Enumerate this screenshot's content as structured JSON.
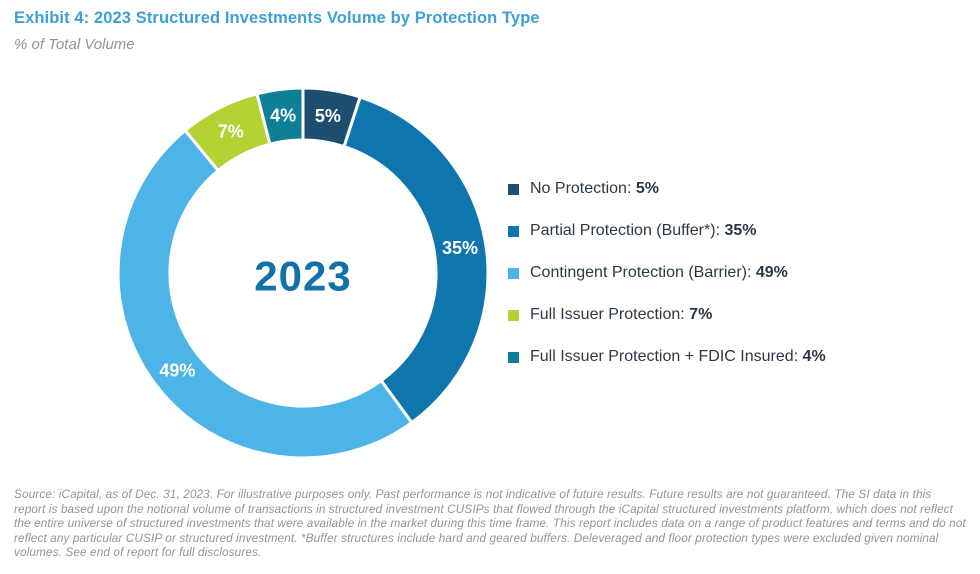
{
  "header": {
    "title": "Exhibit 4: 2023 Structured Investments Volume by Protection Type",
    "subtitle": "% of Total Volume"
  },
  "palette": {
    "title_blue": "#3d9fd6",
    "center_year_blue": "#1272a8",
    "legend_text": "#2a3946",
    "source_gray": "#8d969c",
    "segment_separator": "#ffffff",
    "segment_label_text": "#ffffff"
  },
  "chart_data": {
    "type": "pie",
    "variant": "donut",
    "title": "2023 Structured Investments Volume by Protection Type",
    "units": "% of Total Volume",
    "center_label": "2023",
    "start_angle_deg": 0,
    "direction": "clockwise",
    "legend_position": "right",
    "segments": [
      {
        "label": "No Protection",
        "value": 5,
        "display": "5%",
        "color": "#1e4e6f"
      },
      {
        "label": "Partial Protection (Buffer*)",
        "value": 35,
        "display": "35%",
        "color": "#0e76ad"
      },
      {
        "label": "Contingent Protection (Barrier)",
        "value": 49,
        "display": "49%",
        "color": "#4cb4e7"
      },
      {
        "label": "Full Issuer Protection",
        "value": 7,
        "display": "7%",
        "color": "#b3d234"
      },
      {
        "label": "Full Issuer Protection + FDIC Insured",
        "value": 4,
        "display": "4%",
        "color": "#0e8096"
      }
    ]
  },
  "footer": {
    "source": "Source: iCapital, as of Dec. 31, 2023. For illustrative purposes only. Past performance is not indicative of future results. Future results are not guaranteed. The SI data in this report is based upon the notional volume of transactions in structured investment CUSIPs that flowed through the iCapital structured investments platform, which does not reflect the entire universe of structured investments that were available in the market during this time frame. This report includes data on a range of product features and terms and do not reflect any particular CUSIP or structured investment. *Buffer structures include hard and geared buffers. Deleveraged and floor protection types were excluded given nominal volumes. See end of report for full disclosures."
  }
}
